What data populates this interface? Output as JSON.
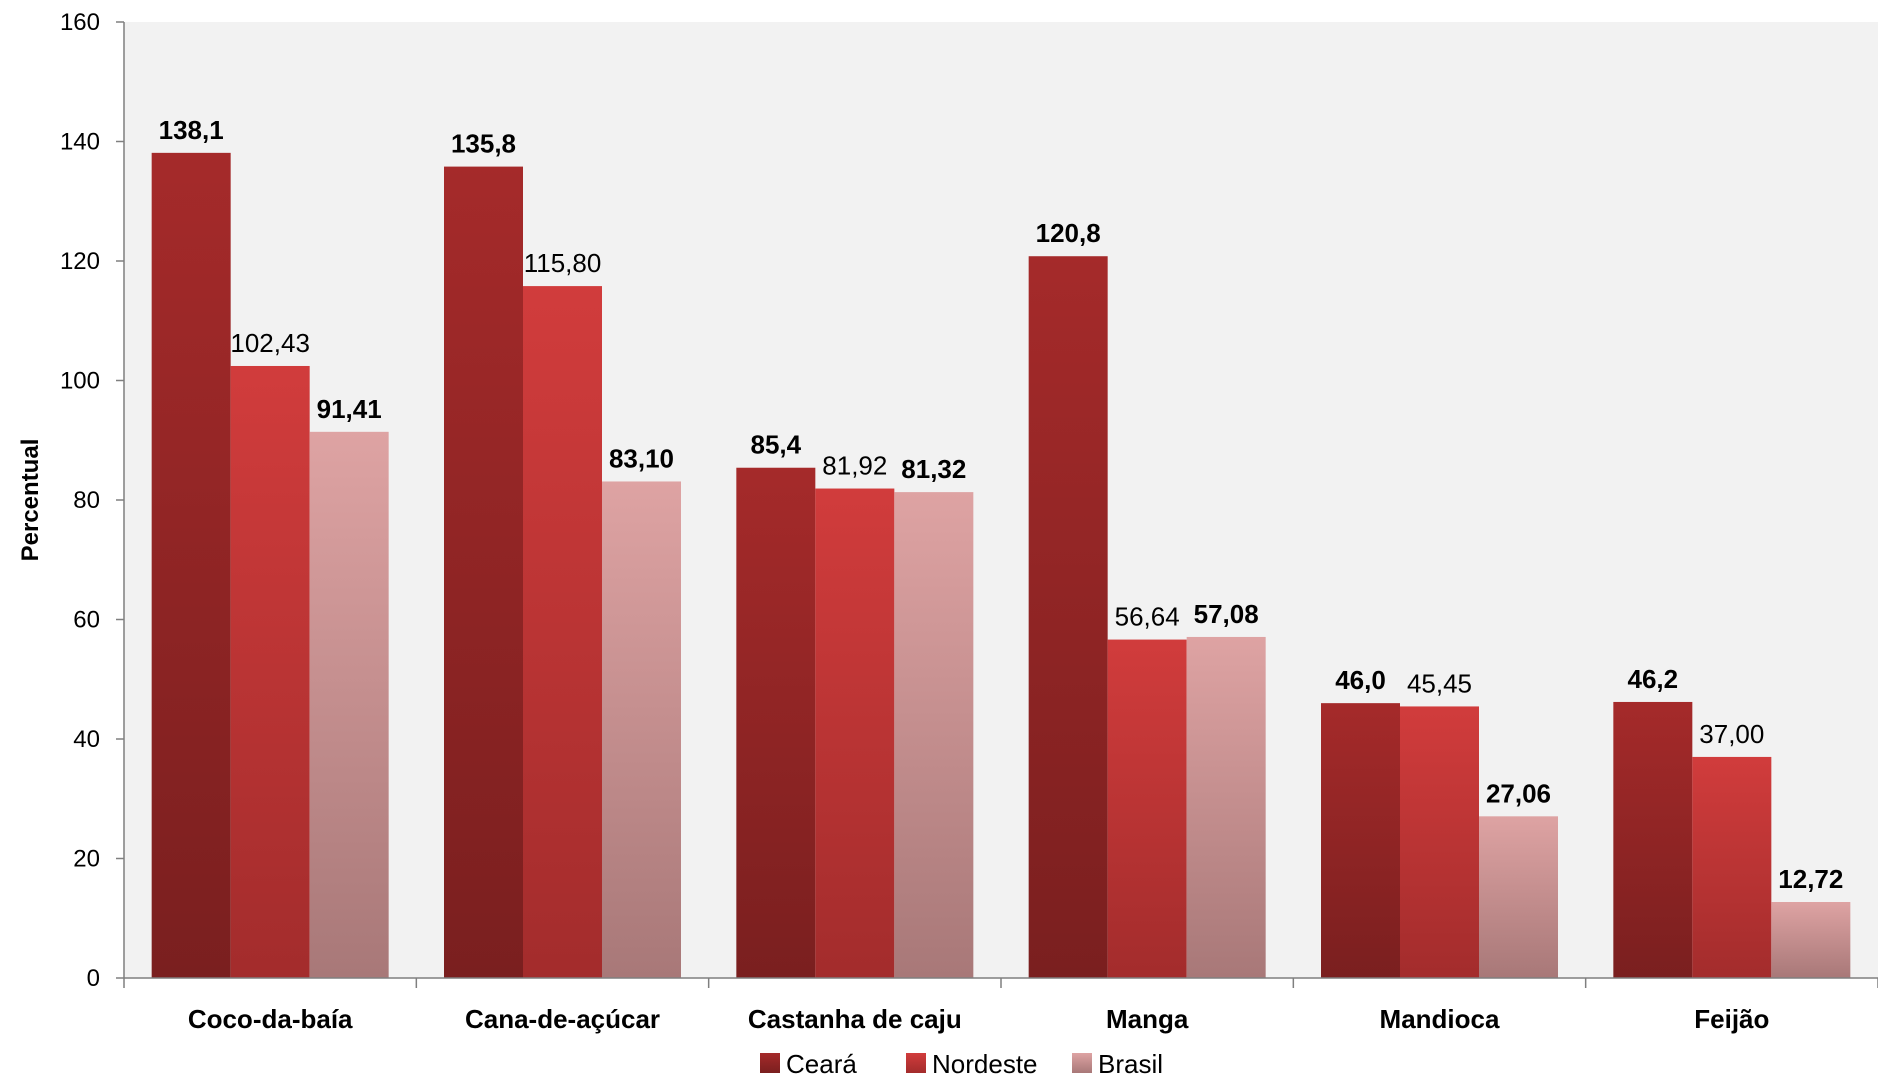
{
  "chart_data": {
    "type": "bar",
    "title": "",
    "xlabel": "",
    "ylabel": "Percentual",
    "ylim": [
      0,
      160
    ],
    "yticks": [
      0,
      20,
      40,
      60,
      80,
      100,
      120,
      140,
      160
    ],
    "grid": false,
    "legend_position": "bottom",
    "categories": [
      "Coco-da-baía",
      "Cana-de-açúcar",
      "Castanha de caju",
      "Manga",
      "Mandioca",
      "Feijão"
    ],
    "series": [
      {
        "name": "Ceará",
        "color": "#a52a2a",
        "color_dark": "#7a1f1f",
        "values": [
          138.1,
          135.8,
          85.4,
          120.8,
          46.0,
          46.2
        ],
        "labels": [
          "138,1",
          "135,8",
          "85,4",
          "120,8",
          "46,0",
          "46,2"
        ],
        "label_bold": true
      },
      {
        "name": "Nordeste",
        "color": "#d13c3c",
        "color_dark": "#a32c2c",
        "values": [
          102.43,
          115.8,
          81.92,
          56.64,
          45.45,
          37.0
        ],
        "labels": [
          "102,43",
          "115,80",
          "81,92",
          "56,64",
          "45,45",
          "37,00"
        ],
        "label_bold": false
      },
      {
        "name": "Brasil",
        "color": "#dea3a3",
        "color_dark": "#a87878",
        "values": [
          91.41,
          83.1,
          81.32,
          57.08,
          27.06,
          12.72
        ],
        "labels": [
          "91,41",
          "83,10",
          "81,32",
          "57,08",
          "27,06",
          "12,72"
        ],
        "label_bold": true
      }
    ]
  },
  "colors": {
    "plot_background": "#f2f2f2",
    "axis": "#7f7f7f"
  }
}
